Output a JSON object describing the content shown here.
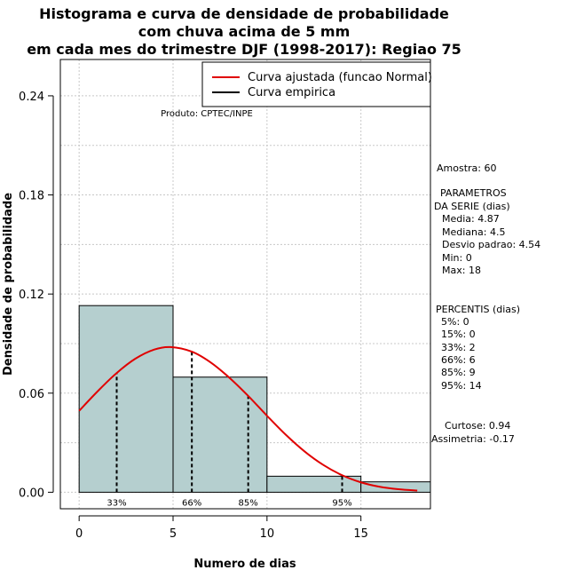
{
  "chart_data": {
    "type": "bar",
    "title_lines": [
      "Histograma e curva de densidade de probabilidade",
      "com chuva acima de 5 mm",
      "em cada mes do trimestre DJF (1998-2017): Regiao 75"
    ],
    "xlabel": "Numero de dias",
    "ylabel": "Densidade de probabilidade",
    "xlim": [
      -1,
      18.7
    ],
    "ylim": [
      -0.01,
      0.262
    ],
    "x_ticks": [
      0,
      5,
      10,
      15
    ],
    "y_ticks": [
      0.0,
      0.06,
      0.12,
      0.18,
      0.24
    ],
    "x_tick_labels": [
      "0",
      "5",
      "10",
      "15"
    ],
    "y_tick_labels": [
      "0.00",
      "0.06",
      "0.12",
      "0.18",
      "0.24"
    ],
    "grid": true,
    "bins": [
      {
        "x0": 0,
        "x1": 5,
        "density": 0.113
      },
      {
        "x0": 5,
        "x1": 10,
        "density": 0.0697
      },
      {
        "x0": 10,
        "x1": 15,
        "density": 0.0097
      },
      {
        "x0": 15,
        "x1": 20,
        "density": 0.0063
      }
    ],
    "bar_color": "#b5cfcf",
    "series": [
      {
        "name": "Curva ajustada (funcao Normal)",
        "color": "#e00000",
        "x": [
          0,
          1,
          2,
          3,
          4,
          4.87,
          6,
          7,
          8,
          9,
          10,
          11,
          12,
          13,
          14,
          15,
          16,
          17,
          18
        ],
        "y": [
          0.0493,
          0.0613,
          0.0722,
          0.0809,
          0.0864,
          0.0879,
          0.0851,
          0.0786,
          0.0693,
          0.0583,
          0.0463,
          0.0348,
          0.0247,
          0.0165,
          0.0103,
          0.006,
          0.0033,
          0.0018,
          0.001
        ]
      },
      {
        "name": "Curva empirica",
        "color": "#000000"
      }
    ],
    "percentile_lines": [
      {
        "label": "33%",
        "x": 2,
        "y_top": 0.0722
      },
      {
        "label": "66%",
        "x": 6,
        "y_top": 0.0851
      },
      {
        "label": "85%",
        "x": 9,
        "y_top": 0.0583
      },
      {
        "label": "95%",
        "x": 14,
        "y_top": 0.0103
      }
    ],
    "legend_position": "top-right",
    "annotation": "Produto: CPTEC/INPE",
    "side_text": {
      "amostra": "Amostra: 60",
      "param_title1": "PARAMETROS",
      "param_title2": "DA SERIE (dias)",
      "media": "Media: 4.87",
      "mediana": "Mediana: 4.5",
      "desvio": "Desvio padrao: 4.54",
      "min": "Min: 0",
      "max": "Max: 18",
      "perc_title": "PERCENTIS (dias)",
      "p5": "5%: 0",
      "p15": "15%: 0",
      "p33": "33%: 2",
      "p66": "66%: 6",
      "p85": "85%: 9",
      "p95": "95%: 14",
      "curtose": "Curtose: 0.94",
      "assimetria": "Assimetria: -0.17"
    }
  }
}
